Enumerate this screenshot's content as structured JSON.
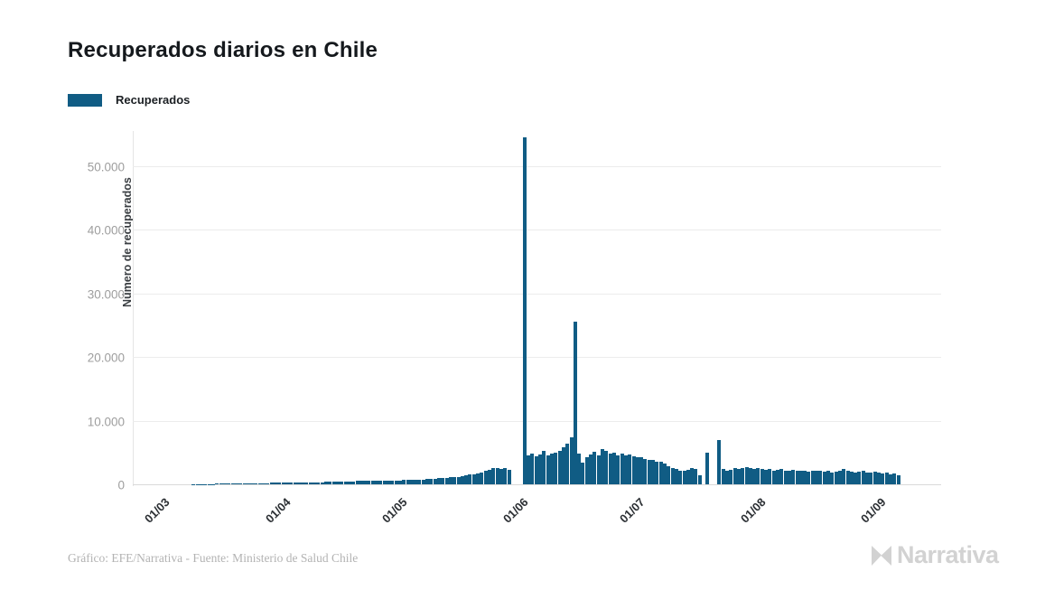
{
  "title": "Recuperados diarios en Chile",
  "legend": {
    "label": "Recuperados",
    "color": "#105c84"
  },
  "footer": {
    "credit": "Gráfico: EFE/Narrativa - Fuente: Ministerio de Salud Chile",
    "brand": "Narrativa",
    "brand_color": "#d2d2d2"
  },
  "chart_data": {
    "type": "bar",
    "title": "Recuperados diarios en Chile",
    "xlabel": "",
    "ylabel": "Número de recuperados",
    "x_unit": "day",
    "x_start": "01/03",
    "x_tick_labels": [
      "01/03",
      "01/04",
      "01/05",
      "01/06",
      "01/07",
      "01/08",
      "01/09"
    ],
    "x_tick_day_indices": [
      0,
      31,
      61,
      92,
      122,
      153,
      184
    ],
    "y_ticks": [
      0,
      10000,
      20000,
      30000,
      40000,
      50000
    ],
    "y_tick_labels": [
      "0",
      "10.000",
      "20.000",
      "30.000",
      "40.000",
      "50.000"
    ],
    "ylim": [
      0,
      55700
    ],
    "grid": true,
    "legend_position": "top-left",
    "bar_color": "#105c84",
    "series": [
      {
        "name": "Recuperados",
        "color": "#105c84",
        "values": [
          0,
          0,
          0,
          0,
          0,
          0,
          0,
          10,
          20,
          30,
          40,
          50,
          60,
          70,
          80,
          90,
          100,
          110,
          120,
          130,
          140,
          150,
          160,
          170,
          180,
          190,
          200,
          210,
          220,
          230,
          240,
          250,
          260,
          270,
          280,
          290,
          300,
          310,
          320,
          330,
          340,
          350,
          360,
          370,
          380,
          400,
          420,
          440,
          460,
          480,
          500,
          510,
          520,
          530,
          540,
          550,
          560,
          570,
          580,
          600,
          620,
          640,
          660,
          680,
          700,
          720,
          750,
          780,
          820,
          860,
          900,
          950,
          1000,
          1050,
          1100,
          1150,
          1200,
          1300,
          1400,
          1500,
          1600,
          1700,
          1900,
          2100,
          2300,
          2500,
          2600,
          2400,
          2500,
          2300,
          0,
          0,
          0,
          54500,
          4600,
          4800,
          4400,
          4700,
          5200,
          4500,
          4800,
          5000,
          5300,
          5800,
          6400,
          7400,
          25600,
          4800,
          3400,
          4300,
          4700,
          5100,
          4500,
          5500,
          5200,
          4800,
          5000,
          4600,
          4900,
          4500,
          4700,
          4400,
          4300,
          4200,
          4000,
          3900,
          3800,
          3600,
          3500,
          3300,
          2800,
          2600,
          2400,
          2200,
          2100,
          2300,
          2500,
          2400,
          1400,
          0,
          5000,
          0,
          0,
          7000,
          2400,
          2200,
          2300,
          2500,
          2400,
          2600,
          2700,
          2500,
          2400,
          2500,
          2400,
          2300,
          2400,
          2200,
          2300,
          2400,
          2200,
          2100,
          2300,
          2200,
          2100,
          2200,
          2000,
          2100,
          2200,
          2100,
          2000,
          2100,
          1900,
          2000,
          2100,
          2400,
          2200,
          2000,
          1900,
          2000,
          2100,
          1900,
          1800,
          2000,
          1900,
          1700,
          1800,
          1600,
          1700,
          1400
        ]
      }
    ]
  }
}
